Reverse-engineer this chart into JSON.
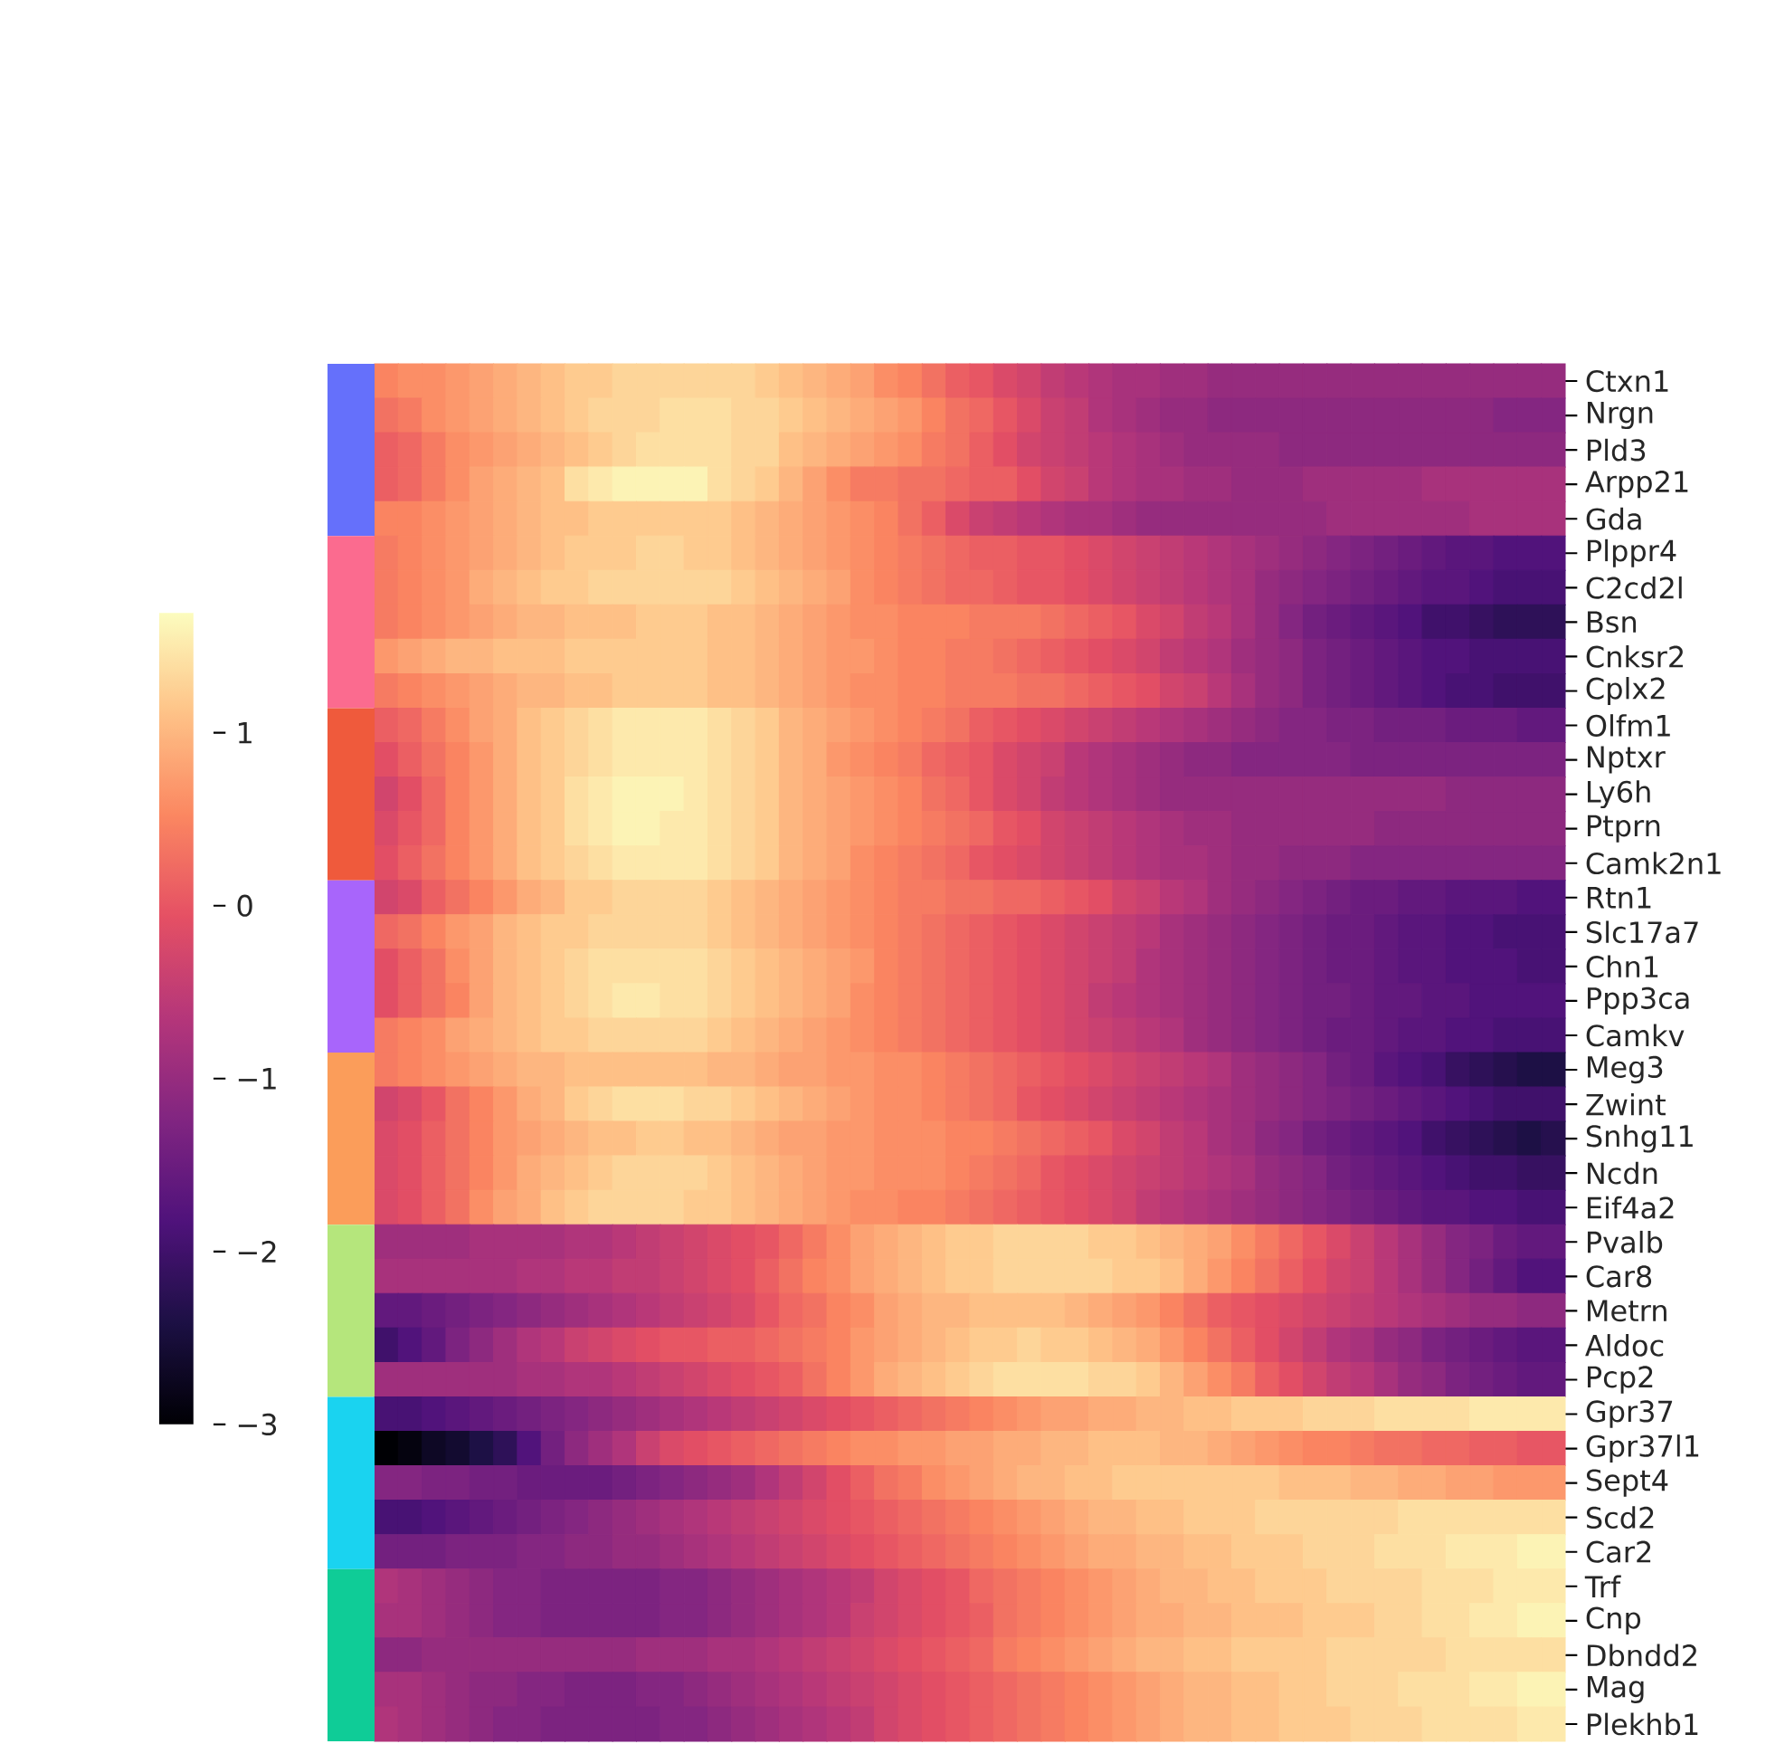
{
  "chart_data": {
    "type": "heatmap",
    "categories": [
      null,
      null,
      null,
      null,
      null,
      null,
      null,
      null,
      null,
      null,
      null,
      null,
      null,
      null,
      null,
      null,
      null,
      null,
      null,
      null,
      null,
      null,
      null,
      null,
      null,
      null,
      null,
      null,
      null,
      null,
      null,
      null,
      null,
      null,
      null,
      null,
      null,
      null,
      null,
      null,
      null,
      null,
      null,
      null,
      null,
      null,
      null,
      null,
      null,
      null
    ],
    "y_categories": [
      "Ctxn1",
      "Nrgn",
      "Pld3",
      "Arpp21",
      "Gda",
      "Plppr4",
      "C2cd2l",
      "Bsn",
      "Cnksr2",
      "Cplx2",
      "Olfm1",
      "Nptxr",
      "Ly6h",
      "Ptprn",
      "Camk2n1",
      "Rtn1",
      "Slc17a7",
      "Chn1",
      "Ppp3ca",
      "Camkv",
      "Meg3",
      "Zwint",
      "Snhg11",
      "Ncdn",
      "Eif4a2",
      "Pvalb",
      "Car8",
      "Metrn",
      "Aldoc",
      "Pcp2",
      "Gpr37",
      "Gpr37l1",
      "Sept4",
      "Scd2",
      "Car2",
      "Trf",
      "Cnp",
      "Dbndd2",
      "Mag",
      "Plekhb1"
    ],
    "clim": [
      -3,
      1.7
    ],
    "cticks": [
      {
        "value": -3,
        "label": "−3"
      },
      {
        "value": -2,
        "label": "−2"
      },
      {
        "value": -1,
        "label": "−1"
      },
      0,
      1
    ],
    "cells": [
      [
        0.5,
        0.6,
        0.6,
        0.7,
        0.8,
        0.9,
        1.0,
        1.1,
        1.2,
        1.2,
        1.3,
        1.3,
        1.3,
        1.3,
        1.3,
        1.3,
        1.2,
        1.1,
        1.0,
        0.9,
        0.8,
        0.6,
        0.5,
        0.3,
        0.1,
        0.0,
        -0.2,
        -0.3,
        -0.5,
        -0.6,
        -0.7,
        -0.8,
        -0.8,
        -0.9,
        -0.9,
        -1.0,
        -1.0,
        -1.0,
        -1.0,
        -1.0,
        -1.0,
        -1.0,
        -1.0,
        -1.0,
        -1.0,
        -1.0,
        -1.0,
        -1.0,
        -1.0,
        -1.0
      ],
      [
        0.3,
        0.4,
        0.6,
        0.7,
        0.8,
        0.9,
        1.0,
        1.1,
        1.2,
        1.3,
        1.3,
        1.3,
        1.4,
        1.4,
        1.4,
        1.3,
        1.3,
        1.2,
        1.1,
        1.0,
        0.9,
        0.8,
        0.7,
        0.5,
        0.3,
        0.2,
        0.0,
        -0.2,
        -0.4,
        -0.5,
        -0.7,
        -0.8,
        -0.9,
        -1.0,
        -1.0,
        -1.1,
        -1.1,
        -1.1,
        -1.1,
        -1.1,
        -1.1,
        -1.1,
        -1.1,
        -1.1,
        -1.1,
        -1.1,
        -1.1,
        -1.2,
        -1.2,
        -1.2
      ],
      [
        0.1,
        0.2,
        0.4,
        0.6,
        0.7,
        0.8,
        0.9,
        1.0,
        1.1,
        1.2,
        1.3,
        1.4,
        1.4,
        1.4,
        1.4,
        1.3,
        1.3,
        1.1,
        1.0,
        0.9,
        0.8,
        0.7,
        0.6,
        0.4,
        0.3,
        0.1,
        -0.1,
        -0.3,
        -0.4,
        -0.5,
        -0.6,
        -0.7,
        -0.8,
        -0.9,
        -1.0,
        -1.0,
        -1.0,
        -1.0,
        -1.1,
        -1.1,
        -1.1,
        -1.1,
        -1.1,
        -1.1,
        -1.1,
        -1.1,
        -1.1,
        -1.1,
        -1.1,
        -1.1
      ],
      [
        0.1,
        0.2,
        0.4,
        0.6,
        0.8,
        0.9,
        1.0,
        1.1,
        1.4,
        1.5,
        1.6,
        1.6,
        1.6,
        1.6,
        1.4,
        1.3,
        1.2,
        1.0,
        0.8,
        0.6,
        0.4,
        0.4,
        0.3,
        0.3,
        0.2,
        0.1,
        0.1,
        -0.1,
        -0.3,
        -0.4,
        -0.6,
        -0.7,
        -0.8,
        -0.8,
        -0.9,
        -0.9,
        -1.0,
        -1.0,
        -1.0,
        -0.9,
        -0.9,
        -0.9,
        -0.9,
        -0.9,
        -0.8,
        -0.8,
        -0.8,
        -0.8,
        -0.8,
        -0.8
      ],
      [
        0.5,
        0.5,
        0.6,
        0.7,
        0.8,
        0.9,
        1.0,
        1.1,
        1.1,
        1.2,
        1.2,
        1.2,
        1.2,
        1.2,
        1.2,
        1.1,
        1.0,
        0.9,
        0.8,
        0.7,
        0.6,
        0.5,
        0.3,
        0.1,
        -0.2,
        -0.4,
        -0.5,
        -0.6,
        -0.7,
        -0.8,
        -0.8,
        -0.9,
        -1.0,
        -1.0,
        -1.0,
        -1.0,
        -1.0,
        -1.0,
        -1.0,
        -1.0,
        -0.9,
        -0.9,
        -0.9,
        -0.9,
        -0.9,
        -0.9,
        -0.8,
        -0.8,
        -0.8,
        -0.8
      ],
      [
        0.4,
        0.5,
        0.6,
        0.7,
        0.8,
        0.9,
        1.0,
        1.1,
        1.2,
        1.2,
        1.2,
        1.3,
        1.3,
        1.2,
        1.2,
        1.1,
        1.0,
        0.9,
        0.8,
        0.7,
        0.6,
        0.5,
        0.4,
        0.3,
        0.2,
        0.1,
        0.1,
        0.0,
        0.0,
        -0.1,
        -0.2,
        -0.3,
        -0.4,
        -0.5,
        -0.6,
        -0.7,
        -0.8,
        -0.9,
        -1.0,
        -1.1,
        -1.2,
        -1.3,
        -1.4,
        -1.5,
        -1.6,
        -1.7,
        -1.7,
        -1.8,
        -1.8,
        -1.8
      ],
      [
        0.4,
        0.5,
        0.6,
        0.7,
        0.9,
        1.0,
        1.1,
        1.2,
        1.2,
        1.3,
        1.3,
        1.3,
        1.3,
        1.3,
        1.3,
        1.2,
        1.1,
        1.0,
        0.9,
        0.8,
        0.6,
        0.5,
        0.4,
        0.3,
        0.2,
        0.2,
        0.1,
        0.0,
        0.0,
        -0.1,
        -0.2,
        -0.3,
        -0.4,
        -0.5,
        -0.6,
        -0.7,
        -0.8,
        -1.0,
        -1.1,
        -1.2,
        -1.3,
        -1.4,
        -1.5,
        -1.6,
        -1.7,
        -1.7,
        -1.8,
        -1.9,
        -1.9,
        -1.9
      ],
      [
        0.4,
        0.5,
        0.6,
        0.7,
        0.8,
        0.9,
        1.0,
        1.0,
        1.1,
        1.1,
        1.1,
        1.2,
        1.2,
        1.2,
        1.1,
        1.1,
        1.0,
        0.9,
        0.8,
        0.7,
        0.6,
        0.6,
        0.5,
        0.5,
        0.5,
        0.4,
        0.4,
        0.4,
        0.3,
        0.2,
        0.1,
        0.0,
        -0.2,
        -0.3,
        -0.5,
        -0.6,
        -0.8,
        -1.0,
        -1.2,
        -1.4,
        -1.5,
        -1.6,
        -1.7,
        -1.8,
        -2.0,
        -2.0,
        -2.1,
        -2.2,
        -2.2,
        -2.2
      ],
      [
        0.7,
        0.8,
        0.9,
        1.0,
        1.0,
        1.1,
        1.1,
        1.1,
        1.2,
        1.2,
        1.2,
        1.2,
        1.2,
        1.2,
        1.1,
        1.1,
        1.0,
        0.9,
        0.8,
        0.7,
        0.7,
        0.6,
        0.5,
        0.5,
        0.4,
        0.4,
        0.3,
        0.2,
        0.1,
        0.0,
        -0.1,
        -0.2,
        -0.3,
        -0.5,
        -0.6,
        -0.7,
        -0.9,
        -1.0,
        -1.1,
        -1.3,
        -1.4,
        -1.5,
        -1.6,
        -1.7,
        -1.8,
        -1.8,
        -1.9,
        -1.9,
        -1.9,
        -1.9
      ],
      [
        0.4,
        0.5,
        0.6,
        0.7,
        0.8,
        0.9,
        1.0,
        1.0,
        1.1,
        1.1,
        1.2,
        1.2,
        1.2,
        1.2,
        1.1,
        1.1,
        1.0,
        0.9,
        0.8,
        0.7,
        0.6,
        0.6,
        0.5,
        0.5,
        0.4,
        0.4,
        0.4,
        0.3,
        0.3,
        0.2,
        0.1,
        0.0,
        -0.1,
        -0.3,
        -0.4,
        -0.6,
        -0.8,
        -1.0,
        -1.1,
        -1.3,
        -1.4,
        -1.5,
        -1.6,
        -1.7,
        -1.8,
        -1.9,
        -1.9,
        -2.0,
        -2.0,
        -2.0
      ],
      [
        0.1,
        0.2,
        0.4,
        0.6,
        0.8,
        0.9,
        1.1,
        1.2,
        1.3,
        1.4,
        1.5,
        1.5,
        1.5,
        1.5,
        1.4,
        1.3,
        1.2,
        1.0,
        0.9,
        0.8,
        0.7,
        0.6,
        0.5,
        0.4,
        0.3,
        0.1,
        0.0,
        -0.1,
        -0.2,
        -0.3,
        -0.4,
        -0.5,
        -0.6,
        -0.7,
        -0.8,
        -0.9,
        -1.0,
        -1.1,
        -1.2,
        -1.2,
        -1.3,
        -1.3,
        -1.4,
        -1.4,
        -1.4,
        -1.5,
        -1.5,
        -1.5,
        -1.6,
        -1.6
      ],
      [
        -0.1,
        0.1,
        0.3,
        0.5,
        0.7,
        0.9,
        1.1,
        1.2,
        1.3,
        1.4,
        1.5,
        1.5,
        1.5,
        1.5,
        1.4,
        1.3,
        1.2,
        1.0,
        0.9,
        0.7,
        0.6,
        0.5,
        0.4,
        0.2,
        0.1,
        0.0,
        -0.2,
        -0.3,
        -0.4,
        -0.6,
        -0.7,
        -0.8,
        -0.9,
        -1.0,
        -1.1,
        -1.1,
        -1.2,
        -1.2,
        -1.2,
        -1.2,
        -1.2,
        -1.3,
        -1.3,
        -1.3,
        -1.3,
        -1.3,
        -1.3,
        -1.3,
        -1.3,
        -1.3
      ],
      [
        -0.3,
        -0.1,
        0.2,
        0.5,
        0.7,
        0.9,
        1.1,
        1.2,
        1.4,
        1.5,
        1.6,
        1.6,
        1.6,
        1.5,
        1.4,
        1.3,
        1.2,
        1.0,
        0.9,
        0.8,
        0.7,
        0.6,
        0.5,
        0.3,
        0.2,
        0.0,
        -0.2,
        -0.3,
        -0.5,
        -0.6,
        -0.7,
        -0.8,
        -0.9,
        -1.0,
        -1.0,
        -1.0,
        -1.0,
        -1.0,
        -1.0,
        -1.0,
        -1.0,
        -1.0,
        -1.0,
        -1.0,
        -1.0,
        -1.1,
        -1.1,
        -1.1,
        -1.1,
        -1.1
      ],
      [
        -0.2,
        0.0,
        0.2,
        0.5,
        0.7,
        0.9,
        1.1,
        1.2,
        1.4,
        1.5,
        1.6,
        1.6,
        1.5,
        1.5,
        1.4,
        1.3,
        1.2,
        1.0,
        0.9,
        0.8,
        0.7,
        0.6,
        0.5,
        0.4,
        0.3,
        0.2,
        0.0,
        -0.1,
        -0.3,
        -0.4,
        -0.5,
        -0.6,
        -0.7,
        -0.8,
        -0.9,
        -0.9,
        -1.0,
        -1.0,
        -1.0,
        -1.0,
        -1.0,
        -1.0,
        -1.1,
        -1.1,
        -1.1,
        -1.1,
        -1.1,
        -1.1,
        -1.1,
        -1.1
      ],
      [
        -0.1,
        0.1,
        0.3,
        0.5,
        0.7,
        0.9,
        1.1,
        1.2,
        1.3,
        1.4,
        1.5,
        1.5,
        1.5,
        1.5,
        1.4,
        1.3,
        1.2,
        1.0,
        0.9,
        0.8,
        0.6,
        0.5,
        0.4,
        0.3,
        0.2,
        0.0,
        -0.1,
        -0.2,
        -0.3,
        -0.4,
        -0.5,
        -0.6,
        -0.7,
        -0.8,
        -0.8,
        -0.9,
        -1.0,
        -1.0,
        -1.1,
        -1.1,
        -1.1,
        -1.2,
        -1.2,
        -1.2,
        -1.2,
        -1.2,
        -1.2,
        -1.2,
        -1.2,
        -1.2
      ],
      [
        -0.3,
        -0.2,
        0.1,
        0.3,
        0.5,
        0.7,
        0.9,
        1.0,
        1.2,
        1.2,
        1.3,
        1.3,
        1.3,
        1.3,
        1.2,
        1.1,
        1.0,
        0.9,
        0.8,
        0.7,
        0.6,
        0.5,
        0.4,
        0.4,
        0.3,
        0.3,
        0.2,
        0.2,
        0.1,
        0.0,
        -0.1,
        -0.3,
        -0.4,
        -0.6,
        -0.7,
        -0.9,
        -1.0,
        -1.1,
        -1.2,
        -1.3,
        -1.4,
        -1.5,
        -1.5,
        -1.6,
        -1.6,
        -1.7,
        -1.7,
        -1.7,
        -1.8,
        -1.8
      ],
      [
        0.2,
        0.3,
        0.5,
        0.7,
        0.8,
        1.0,
        1.1,
        1.2,
        1.2,
        1.3,
        1.3,
        1.3,
        1.3,
        1.3,
        1.2,
        1.1,
        1.0,
        0.9,
        0.8,
        0.7,
        0.6,
        0.5,
        0.4,
        0.3,
        0.2,
        0.1,
        0.0,
        -0.1,
        -0.2,
        -0.3,
        -0.4,
        -0.5,
        -0.6,
        -0.8,
        -0.9,
        -1.0,
        -1.1,
        -1.2,
        -1.3,
        -1.4,
        -1.5,
        -1.5,
        -1.6,
        -1.7,
        -1.7,
        -1.8,
        -1.8,
        -1.9,
        -1.9,
        -1.9
      ],
      [
        -0.1,
        0.1,
        0.3,
        0.6,
        0.8,
        1.0,
        1.1,
        1.2,
        1.3,
        1.4,
        1.4,
        1.4,
        1.4,
        1.4,
        1.3,
        1.2,
        1.1,
        1.0,
        0.9,
        0.8,
        0.7,
        0.5,
        0.4,
        0.3,
        0.2,
        0.1,
        0.0,
        -0.1,
        -0.2,
        -0.3,
        -0.4,
        -0.5,
        -0.7,
        -0.8,
        -0.9,
        -1.0,
        -1.1,
        -1.2,
        -1.3,
        -1.4,
        -1.5,
        -1.5,
        -1.6,
        -1.7,
        -1.7,
        -1.8,
        -1.8,
        -1.8,
        -1.9,
        -1.9
      ],
      [
        -0.1,
        0.1,
        0.3,
        0.5,
        0.8,
        1.0,
        1.1,
        1.2,
        1.3,
        1.4,
        1.5,
        1.5,
        1.4,
        1.4,
        1.3,
        1.2,
        1.1,
        1.0,
        0.9,
        0.8,
        0.6,
        0.5,
        0.4,
        0.3,
        0.2,
        0.1,
        0.0,
        -0.1,
        -0.2,
        -0.3,
        -0.5,
        -0.6,
        -0.7,
        -0.8,
        -0.9,
        -1.0,
        -1.1,
        -1.2,
        -1.3,
        -1.4,
        -1.4,
        -1.5,
        -1.6,
        -1.6,
        -1.7,
        -1.7,
        -1.8,
        -1.8,
        -1.8,
        -1.8
      ],
      [
        0.4,
        0.5,
        0.6,
        0.8,
        0.9,
        1.0,
        1.1,
        1.2,
        1.2,
        1.3,
        1.3,
        1.3,
        1.3,
        1.3,
        1.2,
        1.1,
        1.0,
        0.9,
        0.8,
        0.7,
        0.6,
        0.5,
        0.4,
        0.3,
        0.2,
        0.1,
        0.0,
        -0.1,
        -0.2,
        -0.3,
        -0.4,
        -0.5,
        -0.6,
        -0.7,
        -0.9,
        -1.0,
        -1.1,
        -1.2,
        -1.3,
        -1.4,
        -1.5,
        -1.5,
        -1.6,
        -1.7,
        -1.7,
        -1.8,
        -1.8,
        -1.9,
        -1.9,
        -1.9
      ],
      [
        0.4,
        0.5,
        0.6,
        0.7,
        0.8,
        0.9,
        1.0,
        1.0,
        1.1,
        1.1,
        1.1,
        1.1,
        1.1,
        1.1,
        1.0,
        1.0,
        0.9,
        0.8,
        0.8,
        0.7,
        0.7,
        0.6,
        0.6,
        0.5,
        0.4,
        0.3,
        0.2,
        0.1,
        0.0,
        -0.1,
        -0.2,
        -0.3,
        -0.4,
        -0.5,
        -0.6,
        -0.7,
        -0.9,
        -1.0,
        -1.1,
        -1.2,
        -1.4,
        -1.5,
        -1.7,
        -1.8,
        -1.9,
        -2.1,
        -2.2,
        -2.3,
        -2.4,
        -2.4
      ],
      [
        -0.3,
        -0.2,
        0.0,
        0.3,
        0.5,
        0.7,
        0.9,
        1.0,
        1.2,
        1.3,
        1.4,
        1.4,
        1.4,
        1.3,
        1.3,
        1.2,
        1.1,
        1.0,
        0.9,
        0.8,
        0.7,
        0.6,
        0.6,
        0.5,
        0.4,
        0.3,
        0.2,
        0.0,
        -0.1,
        -0.2,
        -0.3,
        -0.4,
        -0.5,
        -0.6,
        -0.7,
        -0.8,
        -0.9,
        -1.0,
        -1.1,
        -1.2,
        -1.3,
        -1.4,
        -1.5,
        -1.6,
        -1.7,
        -1.8,
        -1.9,
        -2.0,
        -2.0,
        -2.0
      ],
      [
        -0.2,
        -0.1,
        0.1,
        0.3,
        0.5,
        0.7,
        0.8,
        0.9,
        1.0,
        1.1,
        1.1,
        1.2,
        1.2,
        1.1,
        1.1,
        1.0,
        0.9,
        0.8,
        0.8,
        0.7,
        0.7,
        0.6,
        0.6,
        0.6,
        0.5,
        0.5,
        0.4,
        0.3,
        0.2,
        0.1,
        0.0,
        -0.2,
        -0.3,
        -0.5,
        -0.6,
        -0.8,
        -0.9,
        -1.1,
        -1.2,
        -1.4,
        -1.5,
        -1.6,
        -1.7,
        -1.8,
        -2.0,
        -2.1,
        -2.2,
        -2.3,
        -2.4,
        -2.3
      ],
      [
        -0.2,
        -0.1,
        0.1,
        0.3,
        0.5,
        0.7,
        0.9,
        1.0,
        1.1,
        1.2,
        1.3,
        1.3,
        1.3,
        1.3,
        1.2,
        1.1,
        1.0,
        0.9,
        0.8,
        0.7,
        0.7,
        0.6,
        0.6,
        0.6,
        0.5,
        0.4,
        0.3,
        0.2,
        0.0,
        -0.1,
        -0.2,
        -0.3,
        -0.4,
        -0.5,
        -0.6,
        -0.7,
        -0.8,
        -1.0,
        -1.1,
        -1.2,
        -1.4,
        -1.5,
        -1.6,
        -1.7,
        -1.8,
        -1.9,
        -2.0,
        -2.0,
        -2.1,
        -2.1
      ],
      [
        -0.2,
        -0.1,
        0.1,
        0.3,
        0.6,
        0.8,
        0.9,
        1.1,
        1.2,
        1.3,
        1.3,
        1.3,
        1.3,
        1.2,
        1.2,
        1.1,
        1.0,
        0.9,
        0.8,
        0.7,
        0.6,
        0.6,
        0.5,
        0.5,
        0.4,
        0.3,
        0.2,
        0.1,
        0.0,
        -0.1,
        -0.2,
        -0.3,
        -0.5,
        -0.6,
        -0.7,
        -0.8,
        -0.9,
        -1.0,
        -1.1,
        -1.2,
        -1.3,
        -1.4,
        -1.5,
        -1.6,
        -1.7,
        -1.7,
        -1.8,
        -1.8,
        -1.9,
        -1.9
      ],
      [
        -0.9,
        -0.9,
        -0.9,
        -0.9,
        -0.8,
        -0.8,
        -0.8,
        -0.8,
        -0.7,
        -0.7,
        -0.6,
        -0.5,
        -0.4,
        -0.3,
        -0.2,
        -0.1,
        0.0,
        0.2,
        0.4,
        0.6,
        0.8,
        0.9,
        1.0,
        1.1,
        1.2,
        1.2,
        1.3,
        1.3,
        1.3,
        1.3,
        1.2,
        1.2,
        1.1,
        1.0,
        0.9,
        0.8,
        0.6,
        0.4,
        0.2,
        0.0,
        -0.2,
        -0.4,
        -0.6,
        -0.8,
        -1.0,
        -1.2,
        -1.3,
        -1.5,
        -1.6,
        -1.6
      ],
      [
        -0.8,
        -0.8,
        -0.8,
        -0.8,
        -0.8,
        -0.8,
        -0.7,
        -0.7,
        -0.6,
        -0.6,
        -0.5,
        -0.5,
        -0.4,
        -0.3,
        -0.2,
        -0.1,
        0.1,
        0.3,
        0.5,
        0.6,
        0.8,
        0.9,
        1.0,
        1.1,
        1.2,
        1.2,
        1.3,
        1.3,
        1.3,
        1.3,
        1.3,
        1.2,
        1.2,
        1.1,
        0.9,
        0.7,
        0.5,
        0.3,
        0.1,
        -0.1,
        -0.3,
        -0.4,
        -0.6,
        -0.8,
        -1.0,
        -1.2,
        -1.4,
        -1.6,
        -1.8,
        -1.8
      ],
      [
        -1.6,
        -1.6,
        -1.5,
        -1.4,
        -1.3,
        -1.2,
        -1.1,
        -1.0,
        -0.9,
        -0.8,
        -0.7,
        -0.6,
        -0.5,
        -0.4,
        -0.3,
        -0.2,
        0.0,
        0.2,
        0.3,
        0.5,
        0.6,
        0.8,
        0.9,
        1.0,
        1.0,
        1.1,
        1.1,
        1.1,
        1.1,
        1.0,
        0.9,
        0.8,
        0.7,
        0.5,
        0.3,
        0.1,
        0.0,
        -0.1,
        -0.2,
        -0.3,
        -0.4,
        -0.5,
        -0.6,
        -0.7,
        -0.8,
        -0.9,
        -1.0,
        -1.0,
        -1.1,
        -1.1
      ],
      [
        -2.0,
        -1.8,
        -1.6,
        -1.3,
        -1.1,
        -0.9,
        -0.7,
        -0.6,
        -0.4,
        -0.3,
        -0.2,
        -0.1,
        0.0,
        0.0,
        0.1,
        0.1,
        0.2,
        0.3,
        0.4,
        0.5,
        0.7,
        0.8,
        0.9,
        1.0,
        1.1,
        1.2,
        1.2,
        1.3,
        1.2,
        1.2,
        1.1,
        1.0,
        0.9,
        0.7,
        0.5,
        0.3,
        0.1,
        -0.1,
        -0.3,
        -0.5,
        -0.7,
        -0.8,
        -1.0,
        -1.1,
        -1.3,
        -1.4,
        -1.5,
        -1.6,
        -1.7,
        -1.7
      ],
      [
        -0.9,
        -0.9,
        -0.9,
        -0.9,
        -0.9,
        -0.9,
        -0.8,
        -0.8,
        -0.7,
        -0.7,
        -0.6,
        -0.5,
        -0.4,
        -0.3,
        -0.2,
        -0.1,
        0.0,
        0.1,
        0.3,
        0.5,
        0.7,
        0.9,
        1.0,
        1.1,
        1.2,
        1.3,
        1.4,
        1.4,
        1.4,
        1.4,
        1.3,
        1.3,
        1.2,
        1.0,
        0.8,
        0.6,
        0.4,
        0.1,
        -0.1,
        -0.3,
        -0.5,
        -0.6,
        -0.8,
        -1.0,
        -1.1,
        -1.3,
        -1.4,
        -1.5,
        -1.6,
        -1.6
      ],
      [
        -1.9,
        -1.9,
        -1.8,
        -1.7,
        -1.6,
        -1.5,
        -1.4,
        -1.3,
        -1.2,
        -1.1,
        -1.0,
        -0.9,
        -0.8,
        -0.7,
        -0.6,
        -0.5,
        -0.4,
        -0.3,
        -0.2,
        -0.1,
        0.0,
        0.1,
        0.2,
        0.3,
        0.4,
        0.5,
        0.6,
        0.7,
        0.8,
        0.8,
        0.9,
        0.9,
        1.0,
        1.0,
        1.1,
        1.1,
        1.2,
        1.2,
        1.2,
        1.3,
        1.3,
        1.3,
        1.4,
        1.4,
        1.4,
        1.4,
        1.5,
        1.5,
        1.5,
        1.5
      ],
      [
        -3.0,
        -2.9,
        -2.7,
        -2.6,
        -2.4,
        -2.2,
        -1.8,
        -1.4,
        -1.1,
        -0.9,
        -0.7,
        -0.4,
        -0.2,
        -0.1,
        0.0,
        0.1,
        0.2,
        0.3,
        0.4,
        0.5,
        0.6,
        0.6,
        0.7,
        0.7,
        0.8,
        0.8,
        0.9,
        0.9,
        1.0,
        1.0,
        1.1,
        1.1,
        1.1,
        1.0,
        1.0,
        0.9,
        0.8,
        0.7,
        0.6,
        0.5,
        0.5,
        0.4,
        0.3,
        0.3,
        0.2,
        0.2,
        0.1,
        0.1,
        0.0,
        0.0
      ],
      [
        -1.2,
        -1.2,
        -1.3,
        -1.3,
        -1.4,
        -1.4,
        -1.5,
        -1.5,
        -1.5,
        -1.5,
        -1.4,
        -1.3,
        -1.2,
        -1.1,
        -1.0,
        -0.9,
        -0.7,
        -0.5,
        -0.3,
        -0.1,
        0.1,
        0.3,
        0.4,
        0.6,
        0.7,
        0.8,
        0.9,
        1.0,
        1.0,
        1.1,
        1.1,
        1.2,
        1.2,
        1.2,
        1.2,
        1.2,
        1.2,
        1.2,
        1.1,
        1.1,
        1.1,
        1.0,
        1.0,
        0.9,
        0.9,
        0.8,
        0.8,
        0.7,
        0.7,
        0.7
      ],
      [
        -1.9,
        -1.9,
        -1.8,
        -1.7,
        -1.6,
        -1.5,
        -1.4,
        -1.3,
        -1.2,
        -1.1,
        -1.0,
        -0.9,
        -0.8,
        -0.7,
        -0.6,
        -0.5,
        -0.4,
        -0.3,
        -0.2,
        -0.1,
        0.0,
        0.1,
        0.2,
        0.3,
        0.4,
        0.5,
        0.6,
        0.7,
        0.8,
        0.9,
        1.0,
        1.0,
        1.1,
        1.1,
        1.2,
        1.2,
        1.2,
        1.3,
        1.3,
        1.3,
        1.3,
        1.3,
        1.3,
        1.4,
        1.4,
        1.4,
        1.4,
        1.4,
        1.4,
        1.4
      ],
      [
        -1.4,
        -1.4,
        -1.4,
        -1.3,
        -1.3,
        -1.3,
        -1.2,
        -1.2,
        -1.1,
        -1.1,
        -1.0,
        -1.0,
        -0.9,
        -0.8,
        -0.7,
        -0.6,
        -0.5,
        -0.4,
        -0.3,
        -0.2,
        -0.1,
        0.0,
        0.1,
        0.2,
        0.3,
        0.4,
        0.5,
        0.6,
        0.7,
        0.8,
        0.9,
        0.9,
        1.0,
        1.0,
        1.1,
        1.1,
        1.2,
        1.2,
        1.2,
        1.3,
        1.3,
        1.3,
        1.4,
        1.4,
        1.4,
        1.5,
        1.5,
        1.5,
        1.6,
        1.6
      ],
      [
        -0.7,
        -0.8,
        -0.9,
        -1.0,
        -1.1,
        -1.2,
        -1.2,
        -1.3,
        -1.3,
        -1.3,
        -1.3,
        -1.3,
        -1.2,
        -1.2,
        -1.1,
        -1.0,
        -0.9,
        -0.8,
        -0.7,
        -0.6,
        -0.5,
        -0.3,
        -0.2,
        -0.1,
        0.0,
        0.2,
        0.3,
        0.4,
        0.5,
        0.6,
        0.7,
        0.8,
        0.9,
        1.0,
        1.0,
        1.1,
        1.1,
        1.2,
        1.2,
        1.2,
        1.3,
        1.3,
        1.3,
        1.3,
        1.4,
        1.4,
        1.4,
        1.5,
        1.5,
        1.5
      ],
      [
        -0.8,
        -0.8,
        -0.9,
        -1.0,
        -1.1,
        -1.2,
        -1.2,
        -1.3,
        -1.3,
        -1.3,
        -1.3,
        -1.3,
        -1.2,
        -1.2,
        -1.1,
        -1.0,
        -0.9,
        -0.8,
        -0.7,
        -0.6,
        -0.4,
        -0.3,
        -0.2,
        -0.1,
        0.0,
        0.1,
        0.3,
        0.4,
        0.5,
        0.6,
        0.7,
        0.8,
        0.9,
        0.9,
        1.0,
        1.0,
        1.1,
        1.1,
        1.1,
        1.2,
        1.2,
        1.2,
        1.3,
        1.3,
        1.4,
        1.4,
        1.5,
        1.5,
        1.6,
        1.6
      ],
      [
        -1.1,
        -1.1,
        -1.0,
        -1.0,
        -1.0,
        -1.0,
        -1.0,
        -1.0,
        -1.0,
        -1.0,
        -1.0,
        -0.9,
        -0.9,
        -0.9,
        -0.8,
        -0.8,
        -0.7,
        -0.6,
        -0.5,
        -0.4,
        -0.3,
        -0.2,
        -0.1,
        0.0,
        0.1,
        0.2,
        0.4,
        0.5,
        0.6,
        0.7,
        0.8,
        0.9,
        1.0,
        1.0,
        1.1,
        1.1,
        1.2,
        1.2,
        1.2,
        1.2,
        1.3,
        1.3,
        1.3,
        1.3,
        1.3,
        1.4,
        1.4,
        1.4,
        1.4,
        1.4
      ],
      [
        -0.8,
        -0.8,
        -0.9,
        -1.0,
        -1.1,
        -1.1,
        -1.2,
        -1.2,
        -1.3,
        -1.3,
        -1.3,
        -1.2,
        -1.2,
        -1.1,
        -1.0,
        -0.9,
        -0.8,
        -0.7,
        -0.6,
        -0.5,
        -0.4,
        -0.3,
        -0.2,
        -0.1,
        0.0,
        0.1,
        0.2,
        0.3,
        0.4,
        0.5,
        0.6,
        0.7,
        0.8,
        0.9,
        1.0,
        1.0,
        1.1,
        1.1,
        1.2,
        1.2,
        1.3,
        1.3,
        1.3,
        1.4,
        1.4,
        1.4,
        1.5,
        1.5,
        1.6,
        1.6
      ],
      [
        -0.7,
        -0.8,
        -0.9,
        -1.0,
        -1.1,
        -1.2,
        -1.2,
        -1.3,
        -1.3,
        -1.3,
        -1.3,
        -1.3,
        -1.2,
        -1.2,
        -1.1,
        -1.0,
        -0.9,
        -0.8,
        -0.7,
        -0.6,
        -0.5,
        -0.3,
        -0.2,
        -0.1,
        0.0,
        0.1,
        0.2,
        0.3,
        0.4,
        0.5,
        0.6,
        0.7,
        0.8,
        0.9,
        1.0,
        1.0,
        1.1,
        1.1,
        1.2,
        1.2,
        1.2,
        1.3,
        1.3,
        1.3,
        1.4,
        1.4,
        1.4,
        1.4,
        1.5,
        1.5
      ]
    ]
  }
}
